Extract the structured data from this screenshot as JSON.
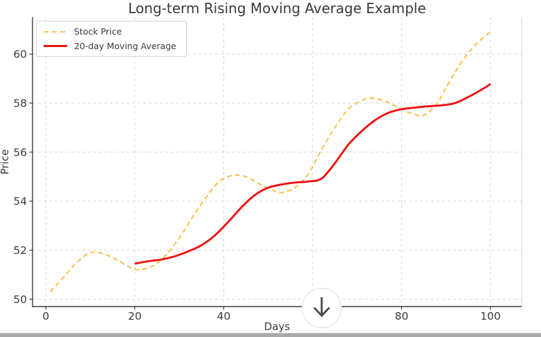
{
  "chart_data": {
    "type": "line",
    "title": "Long-term Rising Moving Average Example",
    "xlabel": "Days",
    "ylabel": "Price",
    "xlim": [
      -3,
      107
    ],
    "ylim": [
      49.7,
      61.5
    ],
    "xticks": [
      0,
      20,
      40,
      60,
      80,
      100
    ],
    "yticks": [
      50,
      52,
      54,
      56,
      58,
      60
    ],
    "grid": true,
    "legend_position": "upper-left",
    "series": [
      {
        "name": "Stock Price",
        "color": "#fcbf4e",
        "style": "dashed",
        "line_width": 2.1,
        "x": [
          1,
          4,
          7,
          10,
          13,
          16,
          19,
          21,
          24,
          27,
          30,
          33,
          36,
          39,
          42,
          45,
          48,
          51,
          53,
          56,
          59,
          62,
          65,
          68,
          71,
          73,
          76,
          79,
          82,
          85,
          88,
          91,
          94,
          97,
          100
        ],
        "y": [
          50.3,
          50.9,
          51.5,
          51.9,
          51.85,
          51.6,
          51.3,
          51.2,
          51.35,
          51.8,
          52.5,
          53.35,
          54.15,
          54.8,
          55.05,
          55.0,
          54.7,
          54.45,
          54.35,
          54.55,
          55.1,
          56.1,
          57.0,
          57.75,
          58.1,
          58.2,
          58.1,
          57.85,
          57.6,
          57.5,
          58.0,
          58.95,
          59.8,
          60.45,
          60.9
        ]
      },
      {
        "name": "20-day Moving Average",
        "color": "#ee1111",
        "style": "solid",
        "line_width": 2.9,
        "x": [
          20,
          23,
          26,
          29,
          32,
          35,
          38,
          41,
          44,
          47,
          50,
          53,
          56,
          59,
          62,
          65,
          68,
          71,
          74,
          77,
          80,
          83,
          86,
          89,
          92,
          95,
          98,
          100
        ],
        "y": [
          51.45,
          51.55,
          51.62,
          51.75,
          51.95,
          52.2,
          52.6,
          53.15,
          53.75,
          54.25,
          54.55,
          54.68,
          54.76,
          54.8,
          54.92,
          55.55,
          56.3,
          56.85,
          57.3,
          57.6,
          57.75,
          57.82,
          57.87,
          57.91,
          58.0,
          58.25,
          58.55,
          58.78
        ]
      }
    ]
  },
  "overlay": {
    "scroll_button": {
      "icon": "down-arrow",
      "arrow_color": "#4d4d4d",
      "circle_border": "#dddddd"
    },
    "bottom_edge_color": "#a9a9a9"
  }
}
